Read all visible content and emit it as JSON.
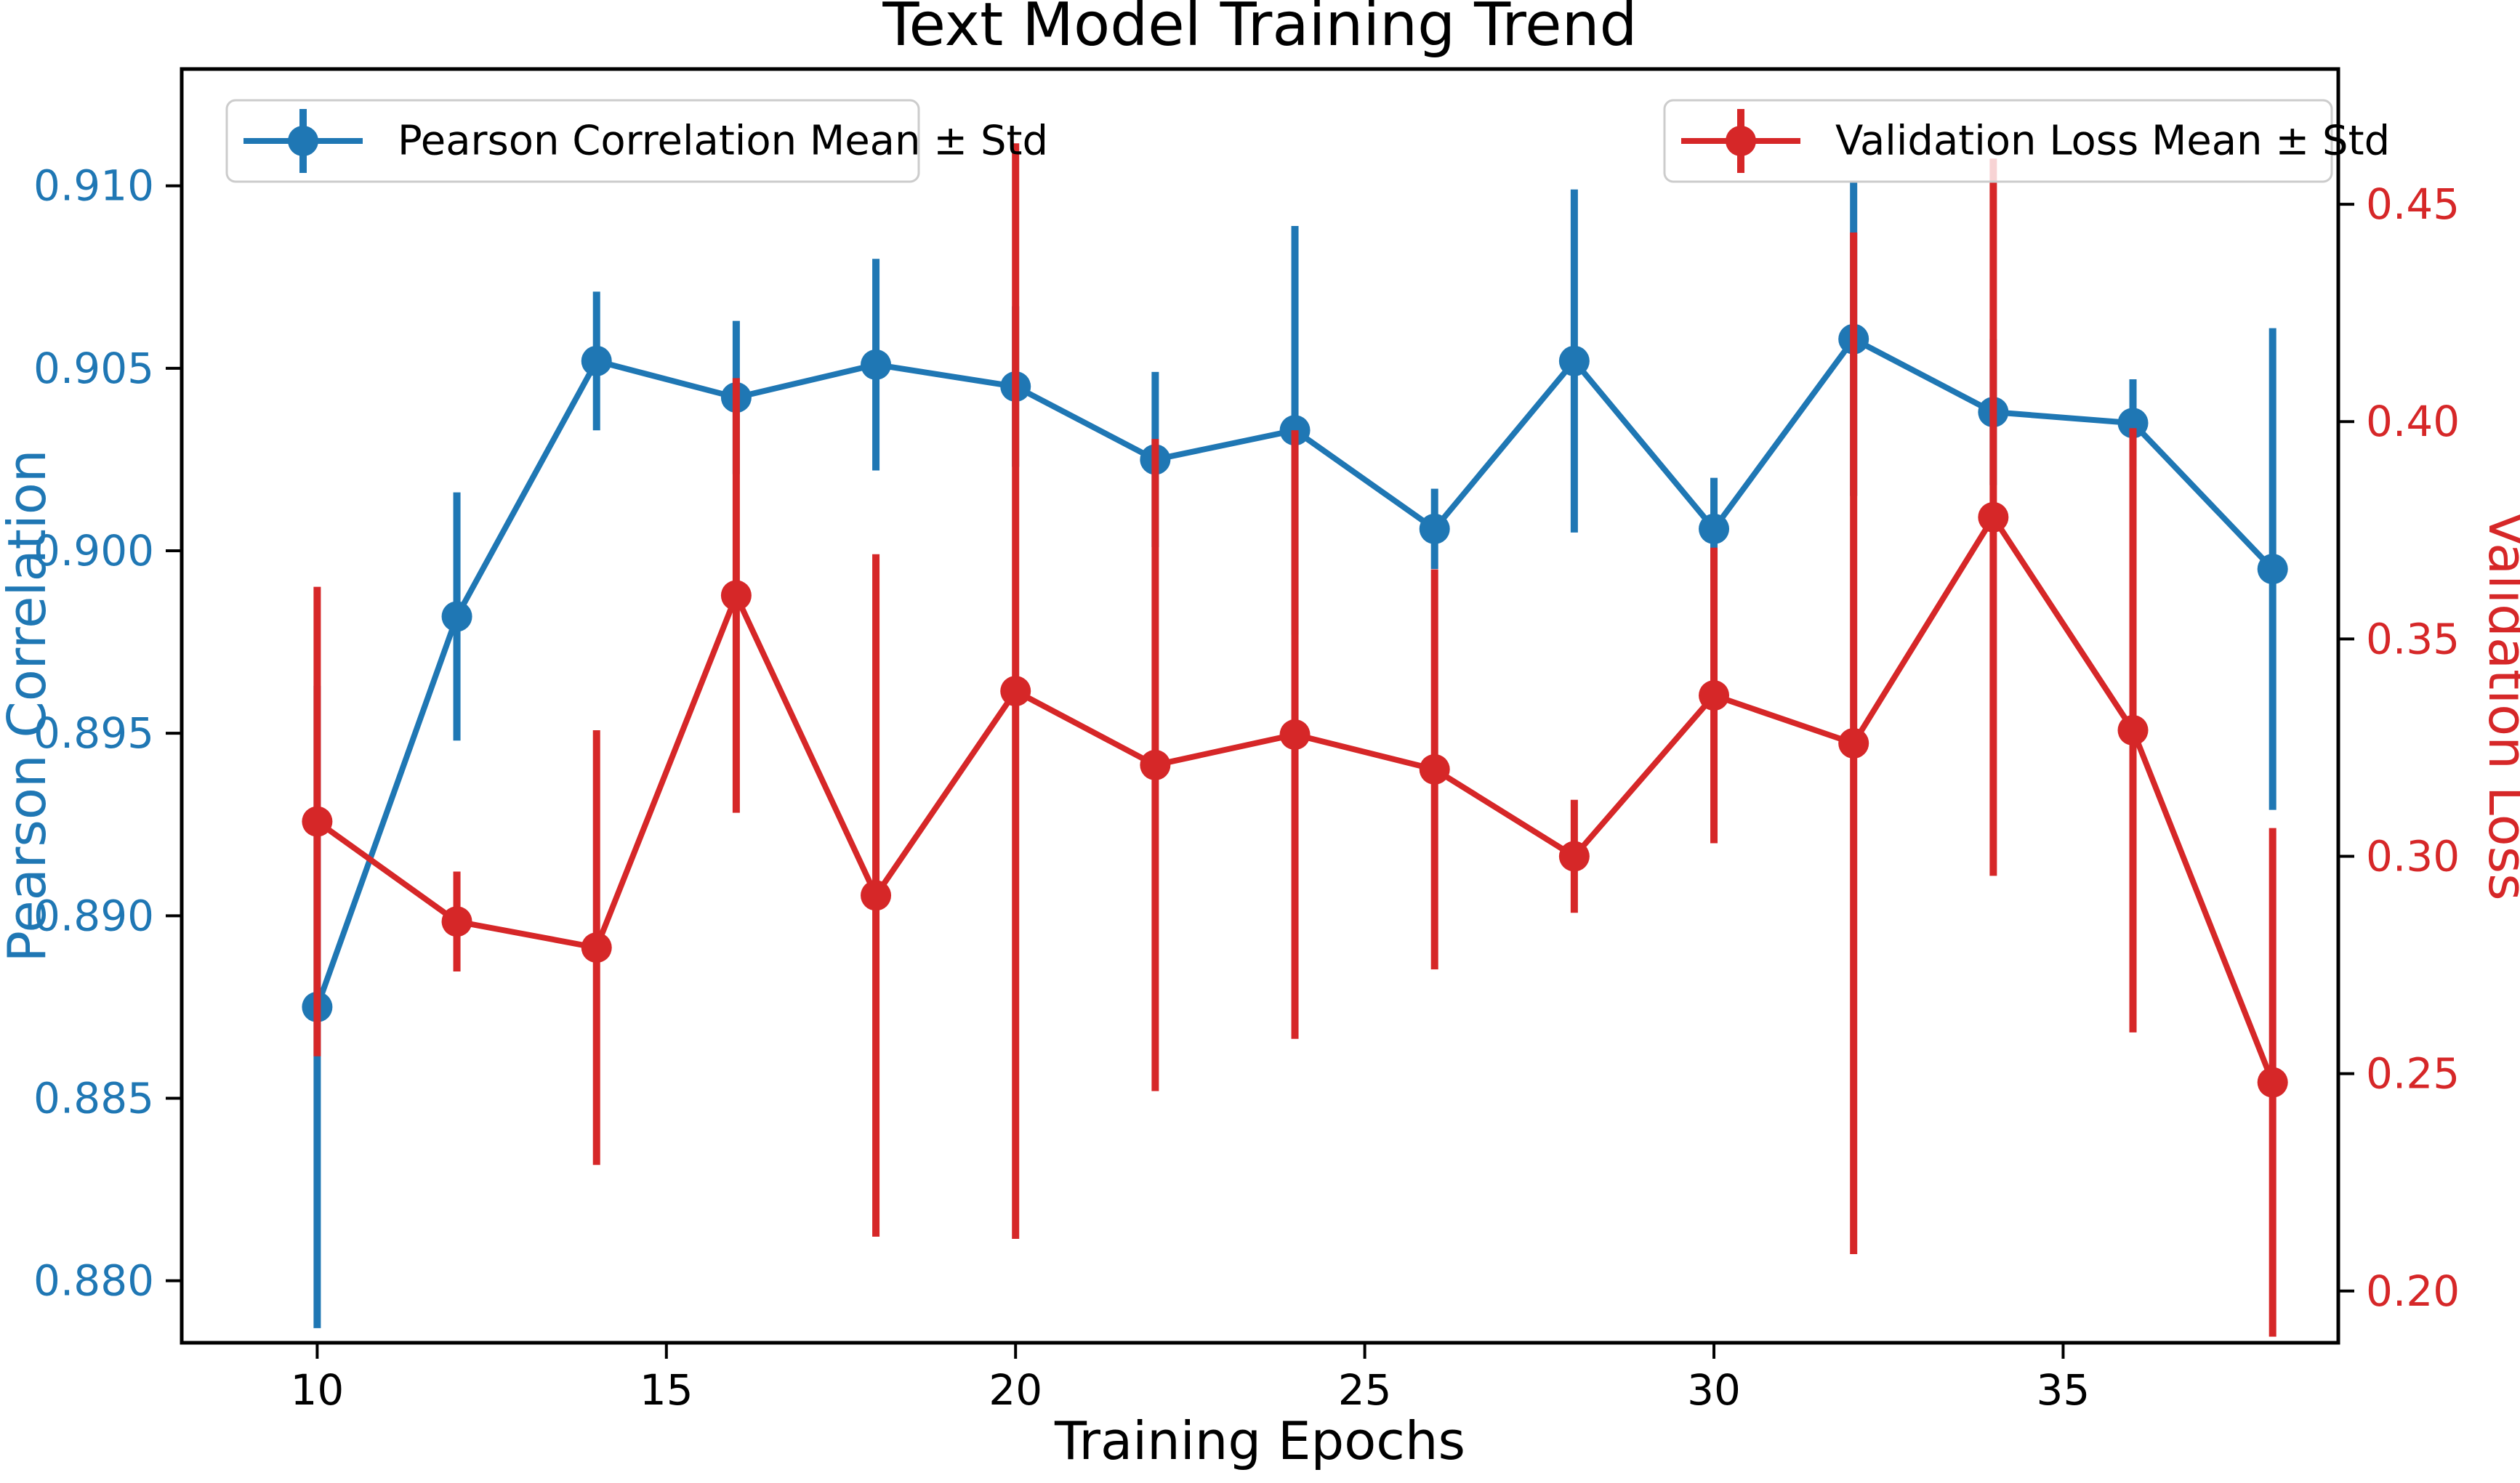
{
  "chart_data": {
    "type": "line",
    "title": "Text Model Training Trend",
    "xlabel": "Training Epochs",
    "ylabel_left": "Pearson Correlation",
    "ylabel_right": "Validation Loss",
    "grid": false,
    "colors": {
      "pearson": "#1f77b4",
      "loss": "#d62728",
      "axis_text": "#000000",
      "spine": "#000000",
      "legend_border": "#cccccc"
    },
    "x": [
      10,
      12,
      14,
      16,
      18,
      20,
      22,
      24,
      26,
      28,
      30,
      32,
      34,
      36,
      38
    ],
    "series": [
      {
        "name": "Pearson Correlation Mean ± Std",
        "axis": "left",
        "color": "#1f77b4",
        "values": [
          0.8875,
          0.8982,
          0.9052,
          0.9042,
          0.9051,
          0.9045,
          0.9025,
          0.9033,
          0.9006,
          0.9052,
          0.9006,
          0.9058,
          0.9038,
          0.9035,
          0.8995
        ],
        "std": [
          0.0088,
          0.0034,
          0.0019,
          0.0021,
          0.0029,
          0.0022,
          0.0024,
          0.0056,
          0.0011,
          0.0047,
          0.0014,
          0.0043,
          0.002,
          0.0012,
          0.0066
        ]
      },
      {
        "name": "Validation Loss Mean ± Std",
        "axis": "right",
        "color": "#d62728",
        "values": [
          0.308,
          0.285,
          0.279,
          0.36,
          0.291,
          0.338,
          0.321,
          0.328,
          0.32,
          0.3,
          0.337,
          0.326,
          0.378,
          0.329,
          0.248
        ],
        "std": [
          0.054,
          0.0115,
          0.05,
          0.05,
          0.0785,
          0.126,
          0.075,
          0.07,
          0.046,
          0.013,
          0.034,
          0.1175,
          0.0825,
          0.0695,
          0.0585
        ]
      }
    ],
    "x_ticks": [
      10,
      15,
      20,
      25,
      30,
      35
    ],
    "x_tick_labels": [
      "10",
      "15",
      "20",
      "25",
      "30",
      "35"
    ],
    "y_left_ticks": [
      0.88,
      0.885,
      0.89,
      0.895,
      0.9,
      0.905,
      0.91
    ],
    "y_left_tick_labels": [
      "0.880",
      "0.885",
      "0.890",
      "0.895",
      "0.900",
      "0.905",
      "0.910"
    ],
    "y_right_ticks": [
      0.2,
      0.25,
      0.3,
      0.35,
      0.4,
      0.45
    ],
    "y_right_tick_labels": [
      "0.20",
      "0.25",
      "0.30",
      "0.35",
      "0.40",
      "0.45"
    ],
    "xlim": [
      8.06,
      38.94
    ],
    "ylim_left": [
      0.8783,
      0.9132
    ],
    "ylim_right": [
      0.1881,
      0.4811
    ],
    "legend_positions": [
      "upper left",
      "upper right"
    ]
  }
}
